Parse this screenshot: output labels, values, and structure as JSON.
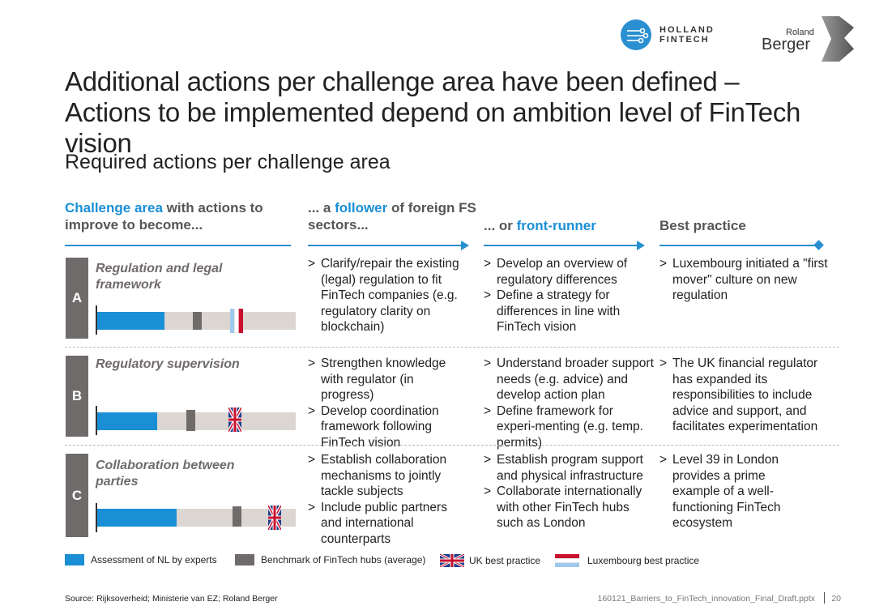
{
  "logos": {
    "holland_fintech_line1": "HOLLAND",
    "holland_fintech_line2": "FINTECH",
    "roland": "Roland",
    "berger": "Berger"
  },
  "title": "Additional actions per challenge area have been defined – Actions to be implemented depend on ambition level of FinTech vision",
  "subtitle": "Required actions per challenge area",
  "headers": {
    "col1_blue": "Challenge area",
    "col1_rest": " with actions to improve to become...",
    "col2_pre": "... a ",
    "col2_blue": "follower",
    "col2_rest": " of foreign FS sectors...",
    "col3_pre": "... or ",
    "col3_blue": "front-runner",
    "col4": "Best practice"
  },
  "rows": [
    {
      "letter": "A",
      "title": "Regulation and legal framework",
      "nl_assessment_pct": 34,
      "benchmark_pct": 48,
      "best_practice_pct": 67,
      "best_practice_flag": "luxembourg",
      "follower": [
        "Clarify/repair the existing (legal) regulation to fit FinTech companies (e.g. regulatory clarity on blockchain)"
      ],
      "front_runner": [
        "Develop an overview of regulatory differences",
        "Define a strategy for differences in line with FinTech vision"
      ],
      "best_practice": [
        "Luxembourg initiated a \"first mover\" culture on new regulation"
      ]
    },
    {
      "letter": "B",
      "title": "Regulatory supervision",
      "nl_assessment_pct": 30,
      "benchmark_pct": 45,
      "best_practice_pct": 66,
      "best_practice_flag": "uk",
      "follower": [
        "Strengthen knowledge with regulator (in progress)",
        "Develop coordination framework following FinTech vision"
      ],
      "front_runner": [
        "Understand broader support needs (e.g. advice) and develop action plan",
        "Define framework for experi-menting (e.g. temp. permits)"
      ],
      "best_practice": [
        "The UK financial regulator has expanded its responsibilities to include advice and support, and facilitates experimentation"
      ]
    },
    {
      "letter": "C",
      "title": "Collaboration between parties",
      "nl_assessment_pct": 40,
      "benchmark_pct": 68,
      "best_practice_pct": 86,
      "best_practice_flag": "uk",
      "follower": [
        "Establish collaboration mechanisms to jointly tackle subjects",
        "Include public partners and international counterparts"
      ],
      "front_runner": [
        "Establish program support and physical infrastructure",
        "Collaborate internationally with other FinTech hubs such as London"
      ],
      "best_practice": [
        "Level 39 in London provides a prime example of a well-functioning FinTech ecosystem"
      ]
    }
  ],
  "legend": {
    "nl": "Assessment of NL by experts",
    "benchmark": "Benchmark of FinTech hubs (average)",
    "uk": "UK best practice",
    "lux": "Luxembourg best practice"
  },
  "colors": {
    "accent_blue": "#1a8fd6",
    "benchmark_grey": "#6f6b6a",
    "track": "#dcd6d2"
  },
  "footer": {
    "source": "Source: Rijksoverheid; Ministerie van EZ; Roland Berger",
    "file": "160121_Barriers_to_FinTech_innovation_Final_Draft.pptx",
    "page": "20"
  }
}
